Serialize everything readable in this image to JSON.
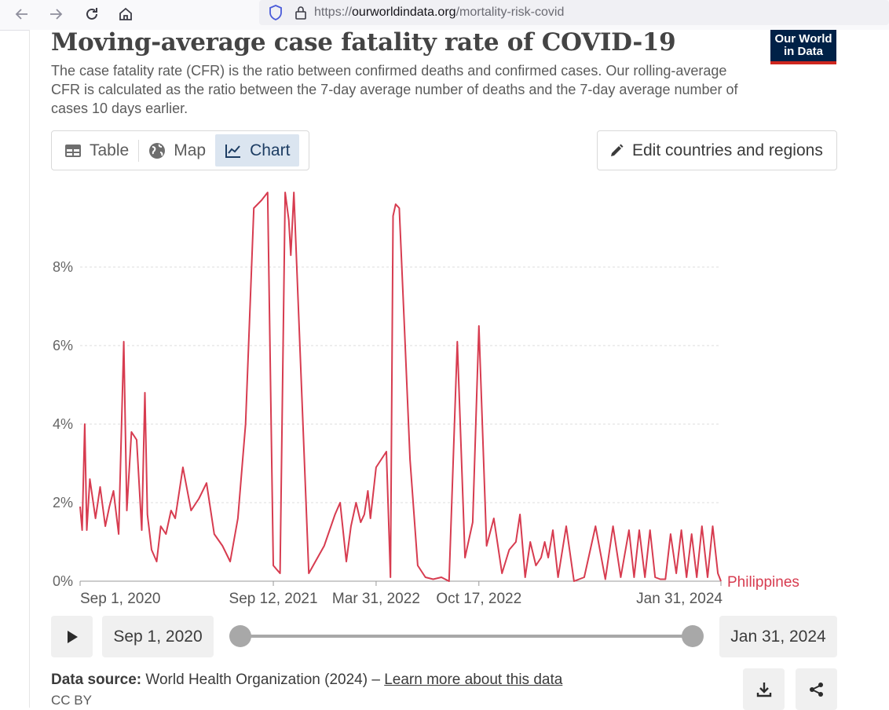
{
  "browser": {
    "url_prefix": "https://",
    "url_host": "ourworldindata.org",
    "url_path": "/mortality-risk-covid"
  },
  "page": {
    "title": "Moving-average case fatality rate of COVID-19",
    "subtitle": "The case fatality rate (CFR) is the ratio between confirmed deaths and confirmed cases. Our rolling-average CFR is calculated as the ratio between the 7-day average number of deaths and the 7-day average number of cases 10 days earlier.",
    "logo_line1": "Our World",
    "logo_line2": "in Data"
  },
  "tabs": [
    {
      "label": "Table",
      "icon": "table-icon",
      "active": false
    },
    {
      "label": "Map",
      "icon": "globe-icon",
      "active": false
    },
    {
      "label": "Chart",
      "icon": "line-chart-icon",
      "active": true
    }
  ],
  "edit_button": {
    "label": "Edit countries and regions",
    "icon": "pencil-icon"
  },
  "colors": {
    "series": "#d73c50",
    "accent": "#1d3d63",
    "logo_bg": "#002147",
    "logo_bar": "#ce261e"
  },
  "chart_data": {
    "type": "line",
    "title": "",
    "ylabel": "",
    "ylim": [
      0,
      10
    ],
    "yticks": [
      "0%",
      "2%",
      "4%",
      "6%",
      "8%"
    ],
    "xticks": [
      "Sep 1, 2020",
      "Sep 12, 2021",
      "Mar 31, 2022",
      "Oct 17, 2022",
      "Jan 31, 2024"
    ],
    "grid": true,
    "series": [
      {
        "name": "Philippines",
        "x": [
          "2020-09-01",
          "2020-09-05",
          "2020-09-10",
          "2020-09-14",
          "2020-09-20",
          "2020-10-01",
          "2020-10-10",
          "2020-10-20",
          "2020-10-28",
          "2020-11-05",
          "2020-11-15",
          "2020-11-25",
          "2020-12-01",
          "2020-12-10",
          "2020-12-20",
          "2020-12-30",
          "2021-01-05",
          "2021-01-10",
          "2021-01-18",
          "2021-01-28",
          "2021-02-05",
          "2021-02-15",
          "2021-02-25",
          "2021-03-05",
          "2021-03-20",
          "2021-04-05",
          "2021-04-20",
          "2021-05-05",
          "2021-05-20",
          "2021-06-05",
          "2021-06-20",
          "2021-07-05",
          "2021-07-20",
          "2021-08-05",
          "2021-08-20",
          "2021-09-01",
          "2021-09-12",
          "2021-09-25",
          "2021-10-05",
          "2021-10-12",
          "2021-10-16",
          "2021-10-22",
          "2021-11-20",
          "2021-12-20",
          "2022-01-10",
          "2022-01-20",
          "2022-02-01",
          "2022-02-10",
          "2022-02-20",
          "2022-03-01",
          "2022-03-08",
          "2022-03-15",
          "2022-03-20",
          "2022-03-31",
          "2022-04-20",
          "2022-04-28",
          "2022-05-03",
          "2022-05-08",
          "2022-05-15",
          "2022-05-25",
          "2022-06-05",
          "2022-06-20",
          "2022-07-05",
          "2022-07-20",
          "2022-08-05",
          "2022-08-20",
          "2022-09-05",
          "2022-09-20",
          "2022-10-05",
          "2022-10-17",
          "2022-11-01",
          "2022-11-15",
          "2022-12-01",
          "2022-12-15",
          "2022-12-28",
          "2023-01-05",
          "2023-01-15",
          "2023-01-25",
          "2023-02-05",
          "2023-02-15",
          "2023-02-22",
          "2023-03-01",
          "2023-03-10",
          "2023-03-20",
          "2023-04-05",
          "2023-04-20",
          "2023-05-10",
          "2023-06-01",
          "2023-06-20",
          "2023-07-05",
          "2023-07-20",
          "2023-08-05",
          "2023-08-15",
          "2023-08-25",
          "2023-09-05",
          "2023-09-15",
          "2023-09-25",
          "2023-10-05",
          "2023-10-15",
          "2023-10-25",
          "2023-11-05",
          "2023-11-15",
          "2023-11-25",
          "2023-12-05",
          "2023-12-15",
          "2023-12-25",
          "2024-01-05",
          "2024-01-15",
          "2024-01-25",
          "2024-01-31"
        ],
        "y": [
          1.9,
          1.3,
          4.0,
          1.3,
          2.6,
          1.6,
          2.4,
          1.4,
          1.9,
          2.3,
          1.2,
          6.1,
          1.8,
          3.8,
          3.6,
          1.3,
          4.8,
          1.7,
          0.8,
          0.5,
          1.4,
          1.2,
          1.8,
          1.6,
          2.9,
          1.8,
          2.1,
          2.5,
          1.2,
          0.9,
          0.5,
          1.6,
          4.0,
          9.5,
          9.7,
          9.9,
          0.4,
          0.2,
          9.9,
          9.2,
          8.3,
          9.9,
          0.2,
          0.9,
          1.7,
          2.0,
          0.5,
          1.4,
          2.0,
          1.5,
          1.7,
          2.3,
          1.6,
          2.9,
          3.3,
          0.1,
          9.3,
          9.6,
          9.5,
          6.5,
          3.1,
          0.4,
          0.1,
          0.05,
          0.1,
          0.0,
          6.1,
          0.6,
          1.5,
          6.5,
          0.9,
          1.6,
          0.2,
          0.8,
          1.0,
          1.7,
          0.1,
          1.0,
          0.4,
          0.6,
          1.0,
          0.6,
          1.3,
          0.1,
          1.4,
          0.0,
          0.1,
          1.4,
          0.05,
          1.4,
          0.1,
          1.3,
          0.1,
          1.3,
          0.1,
          1.3,
          0.1,
          0.05,
          0.05,
          1.2,
          0.2,
          1.3,
          0.1,
          1.2,
          0.1,
          1.4,
          0.1,
          1.4,
          0.2,
          0.0
        ]
      }
    ]
  },
  "timeline": {
    "start_label": "Sep 1, 2020",
    "end_label": "Jan 31, 2024",
    "start_fraction": 0,
    "end_fraction": 1
  },
  "footer": {
    "source_label": "Data source:",
    "source_text": "World Health Organization (2024) –",
    "learn_more": "Learn more about this data",
    "license": "CC BY"
  }
}
